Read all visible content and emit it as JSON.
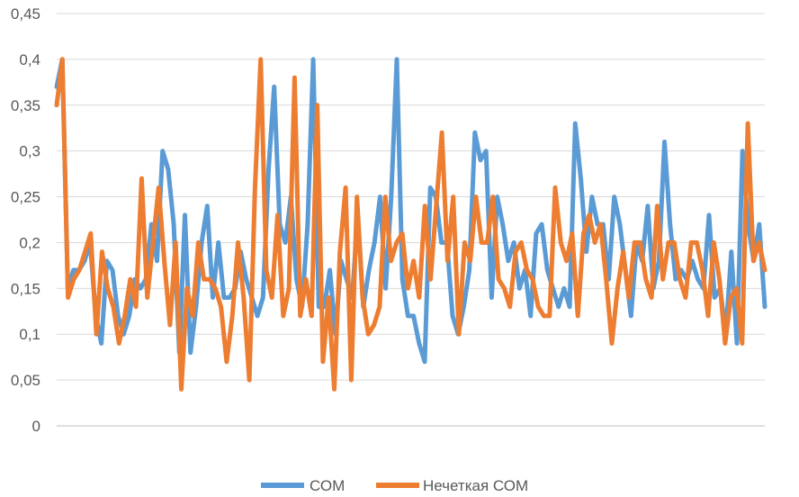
{
  "chart_data": {
    "type": "line",
    "title": "",
    "xlabel": "",
    "ylabel": "",
    "ylim": [
      0,
      0.45
    ],
    "yticks": [
      0,
      0.05,
      0.1,
      0.15,
      0.2,
      0.25,
      0.3,
      0.35,
      0.4,
      0.45
    ],
    "ytick_labels": [
      "0",
      "0,05",
      "0,1",
      "0,15",
      "0,2",
      "0,25",
      "0,3",
      "0,35",
      "0,4",
      "0,45"
    ],
    "grid": true,
    "legend_position": "bottom",
    "colors": {
      "com": "#5b9bd5",
      "fuzzy": "#ed7d31",
      "grid": "#d9d9d9",
      "axis": "#bfbfbf"
    },
    "series": [
      {
        "name": "СОМ",
        "values": [
          0.37,
          0.4,
          0.15,
          0.17,
          0.17,
          0.18,
          0.2,
          0.12,
          0.09,
          0.18,
          0.17,
          0.12,
          0.1,
          0.12,
          0.16,
          0.15,
          0.16,
          0.22,
          0.18,
          0.3,
          0.28,
          0.22,
          0.08,
          0.23,
          0.08,
          0.13,
          0.2,
          0.24,
          0.14,
          0.2,
          0.14,
          0.14,
          0.15,
          0.19,
          0.16,
          0.14,
          0.12,
          0.14,
          0.28,
          0.37,
          0.22,
          0.2,
          0.25,
          0.16,
          0.13,
          0.22,
          0.4,
          0.13,
          0.13,
          0.17,
          0.1,
          0.18,
          0.16,
          0.14,
          0.23,
          0.13,
          0.17,
          0.2,
          0.25,
          0.15,
          0.25,
          0.4,
          0.16,
          0.12,
          0.12,
          0.09,
          0.07,
          0.26,
          0.25,
          0.2,
          0.2,
          0.12,
          0.1,
          0.13,
          0.17,
          0.32,
          0.29,
          0.3,
          0.14,
          0.25,
          0.22,
          0.18,
          0.2,
          0.15,
          0.17,
          0.12,
          0.21,
          0.22,
          0.17,
          0.15,
          0.13,
          0.15,
          0.13,
          0.33,
          0.27,
          0.19,
          0.25,
          0.22,
          0.22,
          0.16,
          0.25,
          0.22,
          0.17,
          0.12,
          0.2,
          0.18,
          0.24,
          0.15,
          0.18,
          0.31,
          0.22,
          0.16,
          0.17,
          0.16,
          0.18,
          0.16,
          0.15,
          0.23,
          0.14,
          0.15,
          0.1,
          0.19,
          0.09,
          0.3,
          0.22,
          0.18,
          0.22,
          0.13
        ]
      },
      {
        "name": "Нечеткая СОМ",
        "values": [
          0.35,
          0.4,
          0.14,
          0.16,
          0.17,
          0.19,
          0.21,
          0.1,
          0.19,
          0.15,
          0.13,
          0.09,
          0.12,
          0.16,
          0.13,
          0.27,
          0.14,
          0.2,
          0.26,
          0.18,
          0.11,
          0.2,
          0.04,
          0.15,
          0.12,
          0.2,
          0.16,
          0.16,
          0.15,
          0.13,
          0.07,
          0.12,
          0.2,
          0.14,
          0.05,
          0.26,
          0.4,
          0.17,
          0.14,
          0.23,
          0.12,
          0.15,
          0.38,
          0.12,
          0.16,
          0.12,
          0.35,
          0.07,
          0.14,
          0.04,
          0.19,
          0.26,
          0.05,
          0.25,
          0.14,
          0.1,
          0.11,
          0.13,
          0.25,
          0.18,
          0.2,
          0.21,
          0.15,
          0.18,
          0.14,
          0.24,
          0.16,
          0.24,
          0.32,
          0.18,
          0.25,
          0.1,
          0.2,
          0.18,
          0.25,
          0.2,
          0.2,
          0.25,
          0.16,
          0.15,
          0.13,
          0.19,
          0.2,
          0.17,
          0.16,
          0.13,
          0.12,
          0.12,
          0.26,
          0.2,
          0.18,
          0.21,
          0.12,
          0.21,
          0.23,
          0.2,
          0.22,
          0.16,
          0.09,
          0.15,
          0.19,
          0.14,
          0.2,
          0.2,
          0.16,
          0.14,
          0.24,
          0.16,
          0.2,
          0.2,
          0.16,
          0.14,
          0.2,
          0.2,
          0.17,
          0.12,
          0.2,
          0.16,
          0.09,
          0.14,
          0.15,
          0.09,
          0.33,
          0.18,
          0.2,
          0.17
        ]
      }
    ]
  }
}
